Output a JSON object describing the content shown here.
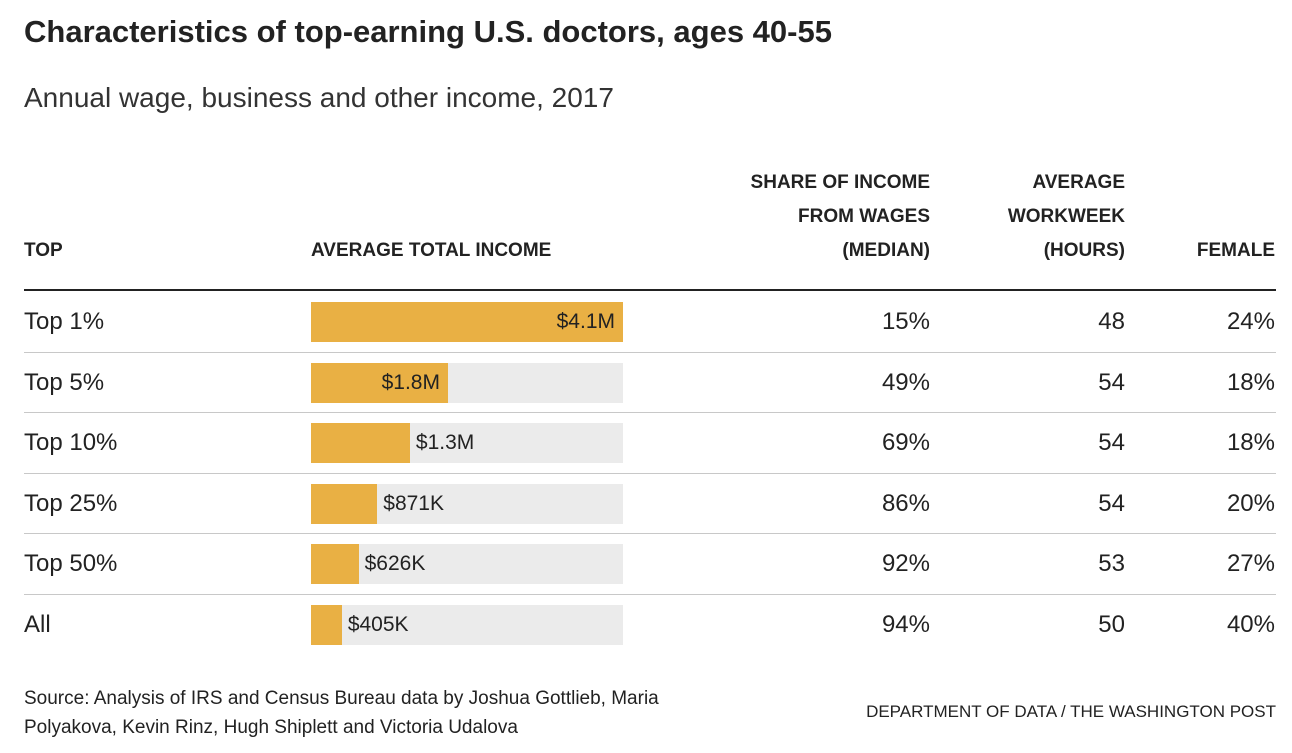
{
  "title": "Characteristics of top-earning U.S. doctors, ages 40-55",
  "subtitle": "Annual wage, business and other income, 2017",
  "table": {
    "headers": [
      [
        "TOP"
      ],
      [
        "AVERAGE TOTAL INCOME"
      ],
      [
        "SHARE OF INCOME",
        "FROM WAGES",
        "(MEDIAN)"
      ],
      [
        "AVERAGE",
        "WORKWEEK",
        "(HOURS)"
      ],
      [
        "FEMALE"
      ]
    ],
    "rows": [
      {
        "top": "Top 1%",
        "income": 4100000,
        "income_label": "$4.1M",
        "wages": "15%",
        "workweek": 48,
        "female": "24%"
      },
      {
        "top": "Top 5%",
        "income": 1800000,
        "income_label": "$1.8M",
        "wages": "49%",
        "workweek": 54,
        "female": "18%"
      },
      {
        "top": "Top 10%",
        "income": 1300000,
        "income_label": "$1.3M",
        "wages": "69%",
        "workweek": 54,
        "female": "18%"
      },
      {
        "top": "Top 25%",
        "income": 871000,
        "income_label": "$871K",
        "wages": "86%",
        "workweek": 54,
        "female": "20%"
      },
      {
        "top": "Top 50%",
        "income": 626000,
        "income_label": "$626K",
        "wages": "92%",
        "workweek": 53,
        "female": "27%"
      },
      {
        "top": "All",
        "income": 405000,
        "income_label": "$405K",
        "wages": "94%",
        "workweek": 50,
        "female": "40%"
      }
    ],
    "income_xlim": [
      0,
      4100000
    ],
    "bar_color": "#e9b044"
  },
  "source": [
    "Source: Analysis of IRS and Census Bureau data by Joshua Gottlieb, Maria",
    "Polyakova, Kevin Rinz, Hugh Shiplett and Victoria Udalova"
  ],
  "credit": "DEPARTMENT OF DATA / THE WASHINGTON POST"
}
